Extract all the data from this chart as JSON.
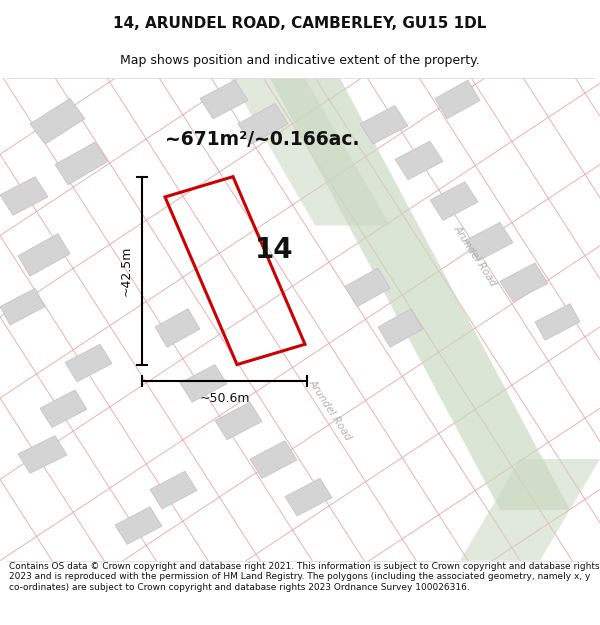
{
  "title_line1": "14, ARUNDEL ROAD, CAMBERLEY, GU15 1DL",
  "title_line2": "Map shows position and indicative extent of the property.",
  "area_text": "~671m²/~0.166ac.",
  "width_label": "~50.6m",
  "height_label": "~42.5m",
  "house_number": "14",
  "road_label1": "Arundel Road",
  "road_label2": "Arundel Road",
  "footer_text": "Contains OS data © Crown copyright and database right 2021. This information is subject to Crown copyright and database rights 2023 and is reproduced with the permission of HM Land Registry. The polygons (including the associated geometry, namely x, y co-ordinates) are subject to Crown copyright and database rights 2023 Ordnance Survey 100026316.",
  "bg_color": "#ffffff",
  "plot_edge_color": "#cc0000",
  "green_fill": "#c8d8c0",
  "pink_line": "#e8a8a8",
  "gray_fill": "#d4d4d4",
  "gray_edge": "#c0c0c0",
  "title_font": 11,
  "subtitle_font": 9,
  "footer_font": 6.5
}
